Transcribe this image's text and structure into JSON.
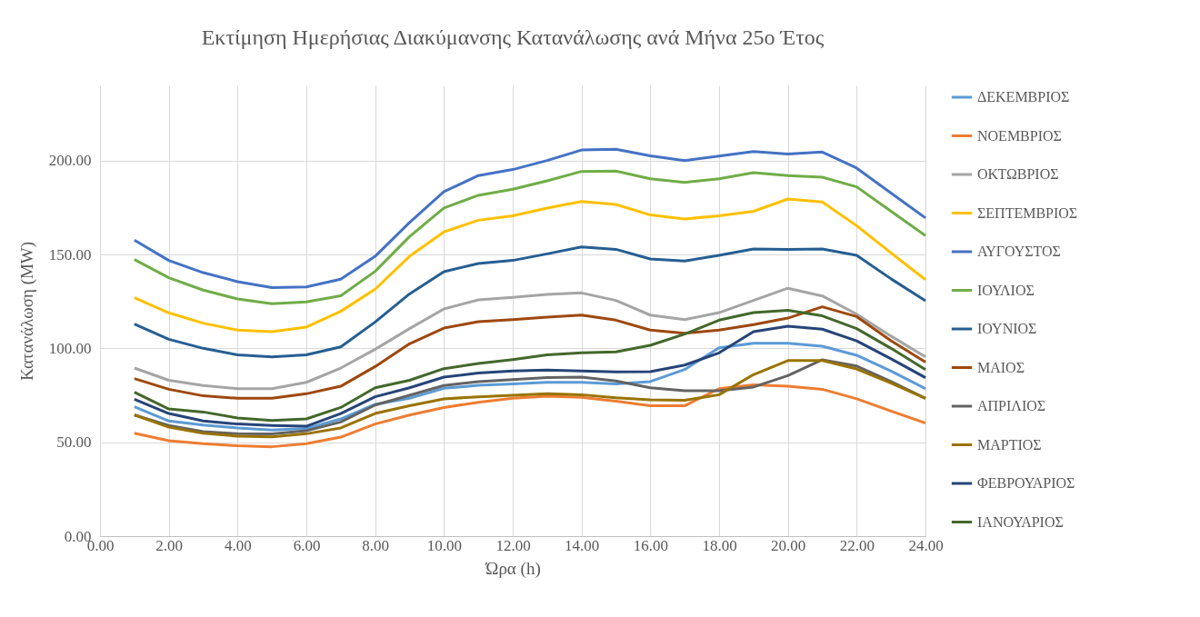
{
  "chart_data": {
    "type": "line",
    "title": "Εκτίμηση Ημερήσιας Διακύμανσης Κατανάλωσης ανά Μήνα 25ο Έτος",
    "xlabel": "Ώρα (h)",
    "ylabel": "Κατανάλωση (MW)",
    "x": [
      1,
      2,
      3,
      4,
      5,
      6,
      7,
      8,
      9,
      10,
      11,
      12,
      13,
      14,
      15,
      16,
      17,
      18,
      19,
      20,
      21,
      22,
      23,
      24
    ],
    "xlim": [
      0,
      24
    ],
    "xticks": [
      {
        "value": 0,
        "label": "0.00"
      },
      {
        "value": 2,
        "label": "2.00"
      },
      {
        "value": 4,
        "label": "4.00"
      },
      {
        "value": 6,
        "label": "6.00"
      },
      {
        "value": 8,
        "label": "8.00"
      },
      {
        "value": 10,
        "label": "10.00"
      },
      {
        "value": 12,
        "label": "12.00"
      },
      {
        "value": 14,
        "label": "14.00"
      },
      {
        "value": 16,
        "label": "16.00"
      },
      {
        "value": 18,
        "label": "18.00"
      },
      {
        "value": 20,
        "label": "20.00"
      },
      {
        "value": 22,
        "label": "22.00"
      },
      {
        "value": 24,
        "label": "24.00"
      }
    ],
    "ylim": [
      0,
      240
    ],
    "yticks": [
      {
        "value": 0,
        "label": "0.00"
      },
      {
        "value": 50,
        "label": "50.00"
      },
      {
        "value": 100,
        "label": "100.00"
      },
      {
        "value": 150,
        "label": "150.00"
      },
      {
        "value": 200,
        "label": "200.00"
      }
    ],
    "grid": true,
    "legend": "right",
    "marker": "none",
    "line_style": "solid",
    "series": [
      {
        "name": "ΔΕΚΕΜΒΡΙΟΣ",
        "color": "#5b9bd5",
        "values": [
          68.9,
          61.3,
          59.2,
          57.6,
          56.5,
          57.3,
          62.4,
          70.2,
          73.4,
          78.7,
          80.3,
          81.1,
          81.9,
          81.9,
          81,
          82.3,
          88.7,
          100.3,
          102.7,
          102.7,
          101.1,
          96.3,
          87.9,
          78.5
        ]
      },
      {
        "name": "ΝΟΕΜΒΡΙΟΣ",
        "color": "#ed7d31",
        "values": [
          54.8,
          50.8,
          49.2,
          48.1,
          47.6,
          49.2,
          52.7,
          59.7,
          64.5,
          68.5,
          71.3,
          73.4,
          74.5,
          73.9,
          71.8,
          69.4,
          69.4,
          78.5,
          80.6,
          79.8,
          78.2,
          73.1,
          66.6,
          60.2
        ]
      },
      {
        "name": "ΟΚΤΩΒΡΙΟΣ",
        "color": "#a5a5a5",
        "values": [
          89.5,
          83,
          80.2,
          78.5,
          78.5,
          81.9,
          89.5,
          99.5,
          110.5,
          121,
          125.8,
          127.1,
          128.7,
          129.5,
          125.5,
          117.7,
          115.3,
          119,
          125.5,
          132,
          127.9,
          118.2,
          106.5,
          95.5
        ]
      },
      {
        "name": "ΣΕΠΤΕΜΒΡΙΟΣ",
        "color": "#ffc000",
        "values": [
          127,
          118.9,
          113.4,
          109.7,
          108.9,
          111.3,
          119.7,
          131.5,
          149,
          162,
          168.2,
          170.6,
          174.7,
          178.2,
          176.6,
          171,
          168.9,
          170.6,
          173,
          179.5,
          177.9,
          165.3,
          150.8,
          136.6
        ]
      },
      {
        "name": "ΑΥΓΟΥΣΤΟΣ",
        "color": "#4472c4",
        "values": [
          157.6,
          146.8,
          140.3,
          135.5,
          132.3,
          132.7,
          136.8,
          149,
          167,
          183.4,
          192,
          195.2,
          200,
          205.6,
          206,
          202.5,
          200,
          202.4,
          204.8,
          203.5,
          204.5,
          196,
          182.7,
          169.4
        ]
      },
      {
        "name": "ΙΟΥΛΙΟΣ",
        "color": "#70ad47",
        "values": [
          147.3,
          137.6,
          131,
          126.3,
          123.7,
          124.7,
          128,
          141,
          159.5,
          174.7,
          181.5,
          184.7,
          189.2,
          194.2,
          194.4,
          190.3,
          188.4,
          190.3,
          193.5,
          192,
          191.1,
          186,
          173,
          160
        ]
      },
      {
        "name": "ΙΟΥΝΙΟΣ",
        "color": "#255e91",
        "values": [
          112.9,
          104.8,
          100,
          96.5,
          95.5,
          96.5,
          100.8,
          114,
          129,
          140.8,
          145.2,
          146.8,
          150.3,
          154,
          152.7,
          147.6,
          146.5,
          149.5,
          152.9,
          152.7,
          152.9,
          149.5,
          137,
          125.3
        ]
      },
      {
        "name": "ΜΑΙΟΣ",
        "color": "#9e480e",
        "values": [
          83.9,
          78.2,
          74.7,
          73.4,
          73.4,
          75.8,
          79.8,
          90.3,
          102.4,
          110.8,
          114.2,
          115.3,
          116.6,
          117.7,
          115,
          109.7,
          108,
          109.7,
          112.6,
          116.1,
          122.1,
          116.9,
          104,
          92.7
        ]
      },
      {
        "name": "ΑΠΡΙΛΙΟΣ",
        "color": "#636363",
        "values": [
          64.5,
          58.9,
          55.6,
          54.5,
          54.4,
          56.1,
          60.8,
          69.8,
          75,
          80.2,
          82.3,
          83.4,
          84.4,
          84.7,
          82.6,
          79,
          77.4,
          77.4,
          79.4,
          85.5,
          93.9,
          90.6,
          82.3,
          73.4
        ]
      },
      {
        "name": "ΜΑΡΤΙΟΣ",
        "color": "#997300",
        "values": [
          64.5,
          58,
          54.8,
          53.2,
          52.9,
          54.5,
          57.6,
          65.3,
          69.4,
          73.1,
          74.2,
          75,
          75.8,
          75.3,
          73.7,
          72.6,
          72.3,
          75.3,
          86,
          93.5,
          93.5,
          89,
          81.5,
          73.4
        ]
      },
      {
        "name": "ΦΕΒΡΟΥΑΡΙΟΣ",
        "color": "#264478",
        "values": [
          72.9,
          65.3,
          61.3,
          59.7,
          58.9,
          58.5,
          65.3,
          74.2,
          79,
          84.7,
          86.8,
          87.9,
          88.4,
          87.9,
          87.4,
          87.6,
          91.1,
          97.6,
          108.9,
          111.8,
          110.2,
          104,
          94.4,
          84.4
        ]
      },
      {
        "name": "ΙΑΝΟΥΑΡΙΟΣ",
        "color": "#43682b",
        "values": [
          76.6,
          67.7,
          66.1,
          62.9,
          61.6,
          62.4,
          68.5,
          79,
          83,
          89.2,
          91.9,
          94,
          96.5,
          97.6,
          98.1,
          101.6,
          107.6,
          115,
          119,
          120.2,
          117.3,
          110.5,
          100,
          88.7
        ]
      }
    ]
  }
}
